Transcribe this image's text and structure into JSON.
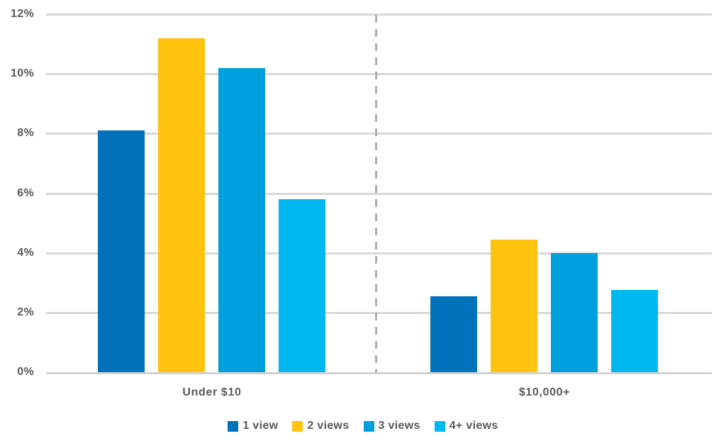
{
  "chart_data": {
    "type": "bar",
    "title": "",
    "categories": [
      "Under $10",
      "$10,000+"
    ],
    "series": [
      {
        "name": "1 view",
        "color": "#0072bc",
        "values": [
          8.1,
          2.55
        ]
      },
      {
        "name": "2 views",
        "color": "#ffc20e",
        "values": [
          11.2,
          4.45
        ]
      },
      {
        "name": "3 views",
        "color": "#00a0df",
        "values": [
          10.2,
          4.0
        ]
      },
      {
        "name": "4+ views",
        "color": "#00b8f1",
        "values": [
          5.8,
          2.75
        ]
      }
    ],
    "xlabel": "",
    "ylabel": "",
    "ylim": [
      0,
      12
    ],
    "ytick_step": 2,
    "ytick_suffix": "%",
    "ytick_labels": [
      "0%",
      "2%",
      "4%",
      "6%",
      "8%",
      "10%",
      "12%"
    ],
    "grid": true,
    "legend_position": "bottom",
    "divider_between_groups": "dashed-vertical-line"
  },
  "colors": {
    "background": "#ffffff",
    "axis_text": "#58595b",
    "gridline": "#d8d8d8",
    "baseline": "#d2d2d2",
    "divider_dash": "#aeaeae"
  }
}
